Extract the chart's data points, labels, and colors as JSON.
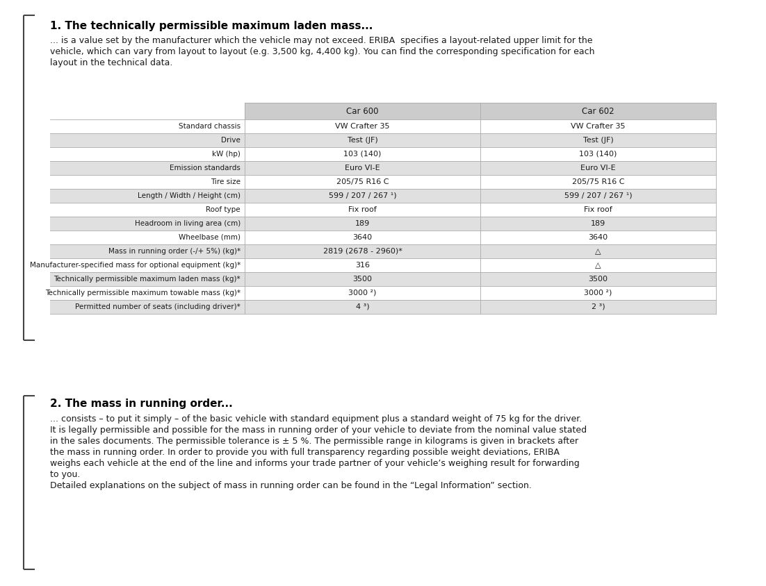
{
  "title1": "1. The technically permissible maximum laden mass...",
  "body1_lines": [
    "... is a value set by the manufacturer which the vehicle may not exceed. ERIBA  specifies a layout-related upper limit for the",
    "vehicle, which can vary from layout to layout (e.g. 3,500 kg, 4,400 kg). You can find the corresponding specification for each",
    "layout in the technical data."
  ],
  "title2": "2. The mass in running order...",
  "body2_lines": [
    "... consists – to put it simply – of the basic vehicle with standard equipment plus a standard weight of 75 kg for the driver.",
    "It is legally permissible and possible for the mass in running order of your vehicle to deviate from the nominal value stated",
    "in the sales documents. The permissible tolerance is ± 5 %. The permissible range in kilograms is given in brackets after",
    "the mass in running order. In order to provide you with full transparency regarding possible weight deviations, ERIBA",
    "weighs each vehicle at the end of the line and informs your trade partner of your vehicle’s weighing result for forwarding",
    "to you.",
    "Detailed explanations on the subject of mass in running order can be found in the “Legal Information” section."
  ],
  "col_headers": [
    "",
    "Car 600",
    "Car 602"
  ],
  "rows": [
    [
      "Standard chassis",
      "VW Crafter 35",
      "VW Crafter 35"
    ],
    [
      "Drive",
      "Test (JF)",
      "Test (JF)"
    ],
    [
      "kW (hp)",
      "103 (140)",
      "103 (140)"
    ],
    [
      "Emission standards",
      "Euro VI-E",
      "Euro VI-E"
    ],
    [
      "Tire size",
      "205/75 R16 C",
      "205/75 R16 C"
    ],
    [
      "Length / Width / Height (cm)",
      "599 / 207 / 267 ¹)",
      "599 / 207 / 267 ¹)"
    ],
    [
      "Roof type",
      "Fix roof",
      "Fix roof"
    ],
    [
      "Headroom in living area (cm)",
      "189",
      "189"
    ],
    [
      "Wheelbase (mm)",
      "3640",
      "3640"
    ],
    [
      "Mass in running order (-/+ 5%) (kg)*",
      "2819 (2678 - 2960)*",
      "△"
    ],
    [
      "Manufacturer-specified mass for optional equipment (kg)*",
      "316",
      "△"
    ],
    [
      "Technically permissible maximum laden mass (kg)*",
      "3500",
      "3500"
    ],
    [
      "Technically permissible maximum towable mass (kg)*",
      "3000 ²)",
      "3000 ²)"
    ],
    [
      "Permitted number of seats (including driver)*",
      "4 ³)",
      "2 ³)"
    ]
  ],
  "shaded_rows": [
    1,
    3,
    5,
    7,
    9,
    11,
    13
  ],
  "bg_color": "#ffffff",
  "table_bg_light": "#e0e0e0",
  "table_bg_white": "#ffffff",
  "header_bg": "#cccccc",
  "text_color": "#1a1a1a",
  "title_color": "#000000",
  "line_color": "#aaaaaa",
  "bracket_color": "#444444"
}
